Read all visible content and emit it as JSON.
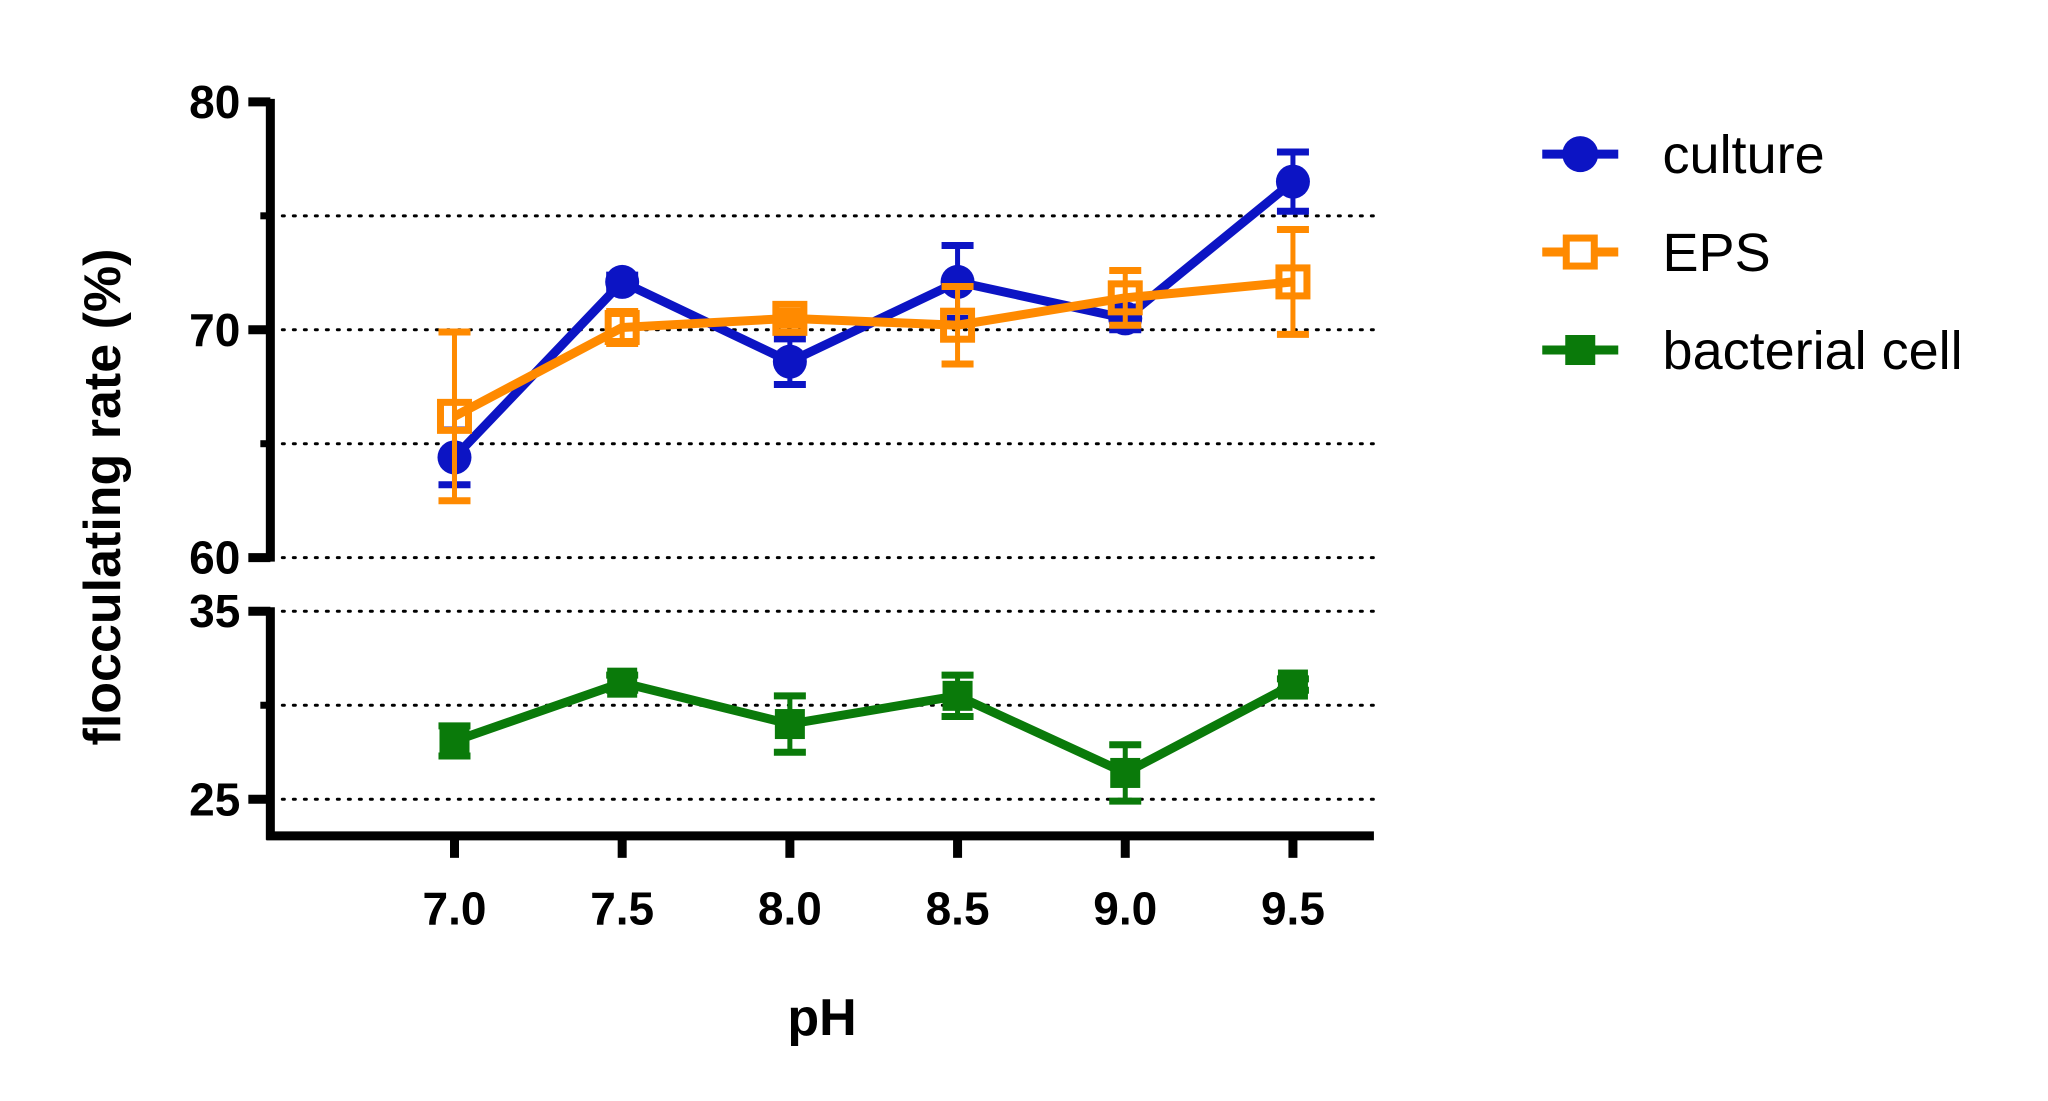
{
  "chart_data": {
    "type": "line",
    "title": "",
    "xlabel": "pH",
    "ylabel": "flocculating rate (%)",
    "x": [
      7.0,
      7.5,
      8.0,
      8.5,
      9.0,
      9.5
    ],
    "x_tick_labels": [
      "7.0",
      "7.5",
      "8.0",
      "8.5",
      "9.0",
      "9.5"
    ],
    "y_axis_break": true,
    "y_segments": [
      {
        "range": [
          60,
          80
        ],
        "tick_labels": [
          "60",
          "70",
          "80"
        ],
        "ticks": [
          60,
          65,
          70,
          75,
          80
        ],
        "gridlines": [
          60,
          65,
          70,
          75
        ]
      },
      {
        "range": [
          23.3,
          35
        ],
        "tick_labels": [
          "25",
          "35"
        ],
        "ticks": [
          25,
          30,
          35
        ],
        "gridlines": [
          25,
          30,
          35
        ]
      }
    ],
    "grid": "dotted horizontal",
    "legend_position": "top-right",
    "series": [
      {
        "name": "culture",
        "color": "#0c14c4",
        "marker": "filled-circle",
        "segment": 0,
        "values": [
          64.4,
          72.1,
          68.6,
          72.1,
          70.5,
          76.5
        ],
        "errors": [
          1.2,
          0.3,
          1.0,
          1.6,
          0.5,
          1.3
        ]
      },
      {
        "name": "EPS",
        "color": "#ff8a00",
        "marker": "open-square",
        "segment": 0,
        "values": [
          66.2,
          70.1,
          70.5,
          70.2,
          71.4,
          72.1
        ],
        "errors": [
          3.7,
          0.7,
          0.3,
          1.7,
          1.2,
          2.3
        ]
      },
      {
        "name": "bacterial cell",
        "color": "#0a7a0a",
        "marker": "filled-square",
        "segment": 1,
        "values": [
          28.1,
          31.2,
          29.0,
          30.5,
          26.4,
          31.1
        ],
        "errors": [
          0.8,
          0.4,
          1.5,
          1.1,
          1.5,
          0.3
        ]
      }
    ]
  }
}
